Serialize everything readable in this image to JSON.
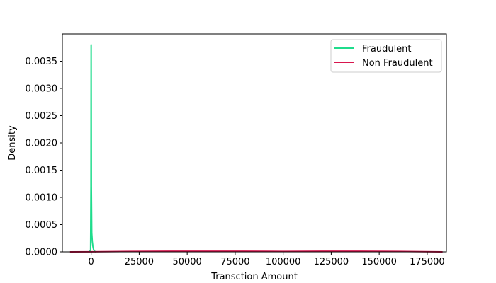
{
  "chart_data": {
    "type": "line",
    "title": "",
    "xlabel": "Transction Amount",
    "ylabel": "Density",
    "xlim": [
      -15000,
      185000
    ],
    "ylim": [
      0,
      0.004
    ],
    "x_ticks": [
      0,
      25000,
      50000,
      75000,
      100000,
      125000,
      150000,
      175000
    ],
    "x_tick_labels": [
      "0",
      "25000",
      "50000",
      "75000",
      "100000",
      "125000",
      "150000",
      "175000"
    ],
    "y_ticks": [
      0.0,
      0.0005,
      0.001,
      0.0015,
      0.002,
      0.0025,
      0.003,
      0.0035
    ],
    "y_tick_labels": [
      "0.0000",
      "0.0005",
      "0.0010",
      "0.0015",
      "0.0020",
      "0.0025",
      "0.0030",
      "0.0035"
    ],
    "grid": false,
    "legend_position": "top-right",
    "series": [
      {
        "name": "Fraudulent",
        "color": "#1fdc8c",
        "x": [
          -1000,
          -300,
          -100,
          0,
          100,
          300,
          600,
          900,
          1200,
          1600,
          2000,
          2500
        ],
        "y": [
          0,
          3e-05,
          0.0012,
          0.0038,
          0.0012,
          0.00035,
          0.00018,
          0.0001,
          5e-05,
          2e-05,
          5e-06,
          0
        ]
      },
      {
        "name": "Non Fraudulent",
        "color": "#d8164e",
        "x": [
          -11000,
          0,
          20000,
          40000,
          60000,
          80000,
          100000,
          120000,
          140000,
          160000,
          183000
        ],
        "y": [
          0,
          2e-06,
          8e-06,
          1.2e-05,
          1.2e-05,
          1.1e-05,
          8e-06,
          1.1e-05,
          1.1e-05,
          8e-06,
          0
        ]
      }
    ]
  }
}
